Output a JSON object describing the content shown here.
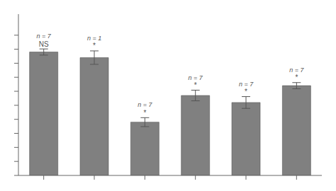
{
  "chart_data": {
    "type": "bar",
    "categories": [
      null,
      null,
      null,
      null,
      null,
      null
    ],
    "values": [
      0.88,
      0.84,
      0.38,
      0.57,
      0.52,
      0.64
    ],
    "errors": [
      0.022,
      0.048,
      0.032,
      0.038,
      0.042,
      0.022
    ],
    "n_labels": [
      "n = 7",
      "n = 1",
      "n = 7",
      "n = 7",
      "n = 7",
      "n = 7"
    ],
    "sig_labels": [
      "NS",
      "*",
      "*",
      "*",
      "*",
      "*"
    ],
    "color": "#808080",
    "ylim": [
      0,
      1.15
    ],
    "yticks": [
      0,
      0.1,
      0.2,
      0.3,
      0.4,
      0.5,
      0.6,
      0.7,
      0.8,
      0.9,
      1.0
    ],
    "grid": false,
    "tick_labels": false
  }
}
